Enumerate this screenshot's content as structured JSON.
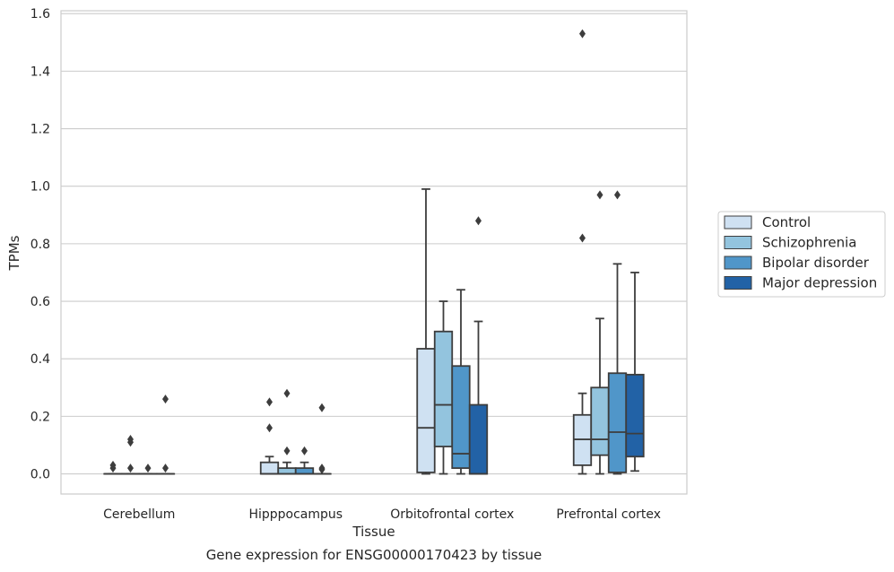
{
  "chart_data": {
    "type": "box",
    "title": "",
    "caption": "Gene expression for ENSG00000170423 by tissue",
    "xlabel": "Tissue",
    "ylabel": "TPMs",
    "ylim": [
      -0.07,
      1.61
    ],
    "yticks": [
      0.0,
      0.2,
      0.4,
      0.6,
      0.8,
      1.0,
      1.2,
      1.4,
      1.6
    ],
    "ytick_labels": [
      "0.0",
      "0.2",
      "0.4",
      "0.6",
      "0.8",
      "1.0",
      "1.2",
      "1.4",
      "1.6"
    ],
    "grid": "horizontal",
    "legend_position": "right",
    "categories": [
      "Cerebellum",
      "Hipppocampus",
      "Orbitofrontal cortex",
      "Prefrontal cortex"
    ],
    "series": [
      {
        "name": "Control",
        "color": "#cfe1f2",
        "boxes": [
          {
            "q1": 0.0,
            "median": 0.0,
            "q3": 0.0,
            "whisker_low": 0.0,
            "whisker_high": 0.0,
            "outliers": [
              0.02,
              0.03
            ]
          },
          {
            "q1": 0.0,
            "median": 0.0,
            "q3": 0.04,
            "whisker_low": 0.0,
            "whisker_high": 0.06,
            "outliers": [
              0.16,
              0.25
            ]
          },
          {
            "q1": 0.005,
            "median": 0.16,
            "q3": 0.435,
            "whisker_low": 0.0,
            "whisker_high": 0.99,
            "outliers": []
          },
          {
            "q1": 0.03,
            "median": 0.12,
            "q3": 0.205,
            "whisker_low": 0.0,
            "whisker_high": 0.28,
            "outliers": [
              0.82,
              1.53
            ]
          }
        ]
      },
      {
        "name": "Schizophrenia",
        "color": "#93c4de",
        "boxes": [
          {
            "q1": 0.0,
            "median": 0.0,
            "q3": 0.0,
            "whisker_low": 0.0,
            "whisker_high": 0.0,
            "outliers": [
              0.02,
              0.11,
              0.12
            ]
          },
          {
            "q1": 0.0,
            "median": 0.0,
            "q3": 0.02,
            "whisker_low": 0.0,
            "whisker_high": 0.04,
            "outliers": [
              0.08,
              0.28
            ]
          },
          {
            "q1": 0.095,
            "median": 0.24,
            "q3": 0.495,
            "whisker_low": 0.0,
            "whisker_high": 0.6,
            "outliers": []
          },
          {
            "q1": 0.065,
            "median": 0.12,
            "q3": 0.3,
            "whisker_low": 0.0,
            "whisker_high": 0.54,
            "outliers": [
              0.97
            ]
          }
        ]
      },
      {
        "name": "Bipolar disorder",
        "color": "#5096c9",
        "boxes": [
          {
            "q1": 0.0,
            "median": 0.0,
            "q3": 0.0,
            "whisker_low": 0.0,
            "whisker_high": 0.0,
            "outliers": [
              0.02
            ]
          },
          {
            "q1": 0.0,
            "median": 0.0,
            "q3": 0.02,
            "whisker_low": 0.0,
            "whisker_high": 0.04,
            "outliers": [
              0.08
            ]
          },
          {
            "q1": 0.02,
            "median": 0.07,
            "q3": 0.375,
            "whisker_low": 0.0,
            "whisker_high": 0.64,
            "outliers": []
          },
          {
            "q1": 0.005,
            "median": 0.145,
            "q3": 0.35,
            "whisker_low": 0.0,
            "whisker_high": 0.73,
            "outliers": [
              0.97
            ]
          }
        ]
      },
      {
        "name": "Major depression",
        "color": "#2262a6",
        "boxes": [
          {
            "q1": 0.0,
            "median": 0.0,
            "q3": 0.0,
            "whisker_low": 0.0,
            "whisker_high": 0.0,
            "outliers": [
              0.02,
              0.26
            ]
          },
          {
            "q1": 0.0,
            "median": 0.0,
            "q3": 0.0,
            "whisker_low": 0.0,
            "whisker_high": 0.0,
            "outliers": [
              0.015,
              0.02,
              0.23
            ]
          },
          {
            "q1": 0.0,
            "median": 0.0,
            "q3": 0.24,
            "whisker_low": 0.0,
            "whisker_high": 0.53,
            "outliers": [
              0.88
            ]
          },
          {
            "q1": 0.06,
            "median": 0.14,
            "q3": 0.345,
            "whisker_low": 0.01,
            "whisker_high": 0.7,
            "outliers": []
          }
        ]
      }
    ]
  }
}
